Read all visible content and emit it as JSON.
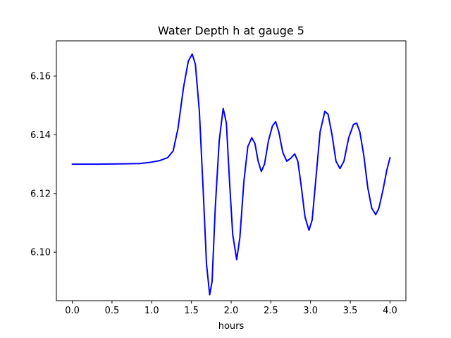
{
  "chart_data": {
    "type": "line",
    "title": "Water Depth h at gauge 5",
    "xlabel": "hours",
    "ylabel": "",
    "xlim": [
      -0.2,
      4.2
    ],
    "ylim": [
      6.0835,
      6.172
    ],
    "xticks": [
      0.0,
      0.5,
      1.0,
      1.5,
      2.0,
      2.5,
      3.0,
      3.5,
      4.0
    ],
    "xtick_labels": [
      "0.0",
      "0.5",
      "1.0",
      "1.5",
      "2.0",
      "2.5",
      "3.0",
      "3.5",
      "4.0"
    ],
    "yticks": [
      6.1,
      6.12,
      6.14,
      6.16
    ],
    "ytick_labels": [
      "6.10",
      "6.12",
      "6.14",
      "6.16"
    ],
    "grid": false,
    "series": [
      {
        "color": "#0000ff",
        "points": [
          [
            0.0,
            6.13
          ],
          [
            0.3,
            6.13
          ],
          [
            0.6,
            6.1301
          ],
          [
            0.85,
            6.1302
          ],
          [
            1.0,
            6.1307
          ],
          [
            1.1,
            6.1312
          ],
          [
            1.2,
            6.1322
          ],
          [
            1.27,
            6.1345
          ],
          [
            1.33,
            6.142
          ],
          [
            1.4,
            6.156
          ],
          [
            1.46,
            6.165
          ],
          [
            1.51,
            6.1675
          ],
          [
            1.55,
            6.164
          ],
          [
            1.6,
            6.148
          ],
          [
            1.65,
            6.12
          ],
          [
            1.69,
            6.096
          ],
          [
            1.73,
            6.0855
          ],
          [
            1.76,
            6.09
          ],
          [
            1.8,
            6.115
          ],
          [
            1.85,
            6.138
          ],
          [
            1.9,
            6.149
          ],
          [
            1.94,
            6.144
          ],
          [
            1.98,
            6.124
          ],
          [
            2.02,
            6.106
          ],
          [
            2.07,
            6.0975
          ],
          [
            2.11,
            6.105
          ],
          [
            2.16,
            6.124
          ],
          [
            2.21,
            6.136
          ],
          [
            2.26,
            6.139
          ],
          [
            2.3,
            6.137
          ],
          [
            2.34,
            6.131
          ],
          [
            2.38,
            6.1275
          ],
          [
            2.42,
            6.13
          ],
          [
            2.47,
            6.138
          ],
          [
            2.52,
            6.143
          ],
          [
            2.56,
            6.1445
          ],
          [
            2.6,
            6.141
          ],
          [
            2.65,
            6.134
          ],
          [
            2.7,
            6.131
          ],
          [
            2.75,
            6.132
          ],
          [
            2.8,
            6.1335
          ],
          [
            2.84,
            6.131
          ],
          [
            2.88,
            6.123
          ],
          [
            2.93,
            6.112
          ],
          [
            2.98,
            6.1075
          ],
          [
            3.02,
            6.111
          ],
          [
            3.07,
            6.126
          ],
          [
            3.12,
            6.141
          ],
          [
            3.18,
            6.148
          ],
          [
            3.22,
            6.147
          ],
          [
            3.27,
            6.14
          ],
          [
            3.32,
            6.131
          ],
          [
            3.37,
            6.1285
          ],
          [
            3.42,
            6.131
          ],
          [
            3.48,
            6.139
          ],
          [
            3.54,
            6.1435
          ],
          [
            3.58,
            6.144
          ],
          [
            3.62,
            6.141
          ],
          [
            3.67,
            6.133
          ],
          [
            3.72,
            6.122
          ],
          [
            3.77,
            6.115
          ],
          [
            3.82,
            6.1128
          ],
          [
            3.86,
            6.115
          ],
          [
            3.91,
            6.121
          ],
          [
            3.96,
            6.128
          ],
          [
            4.0,
            6.1322
          ]
        ]
      }
    ]
  }
}
